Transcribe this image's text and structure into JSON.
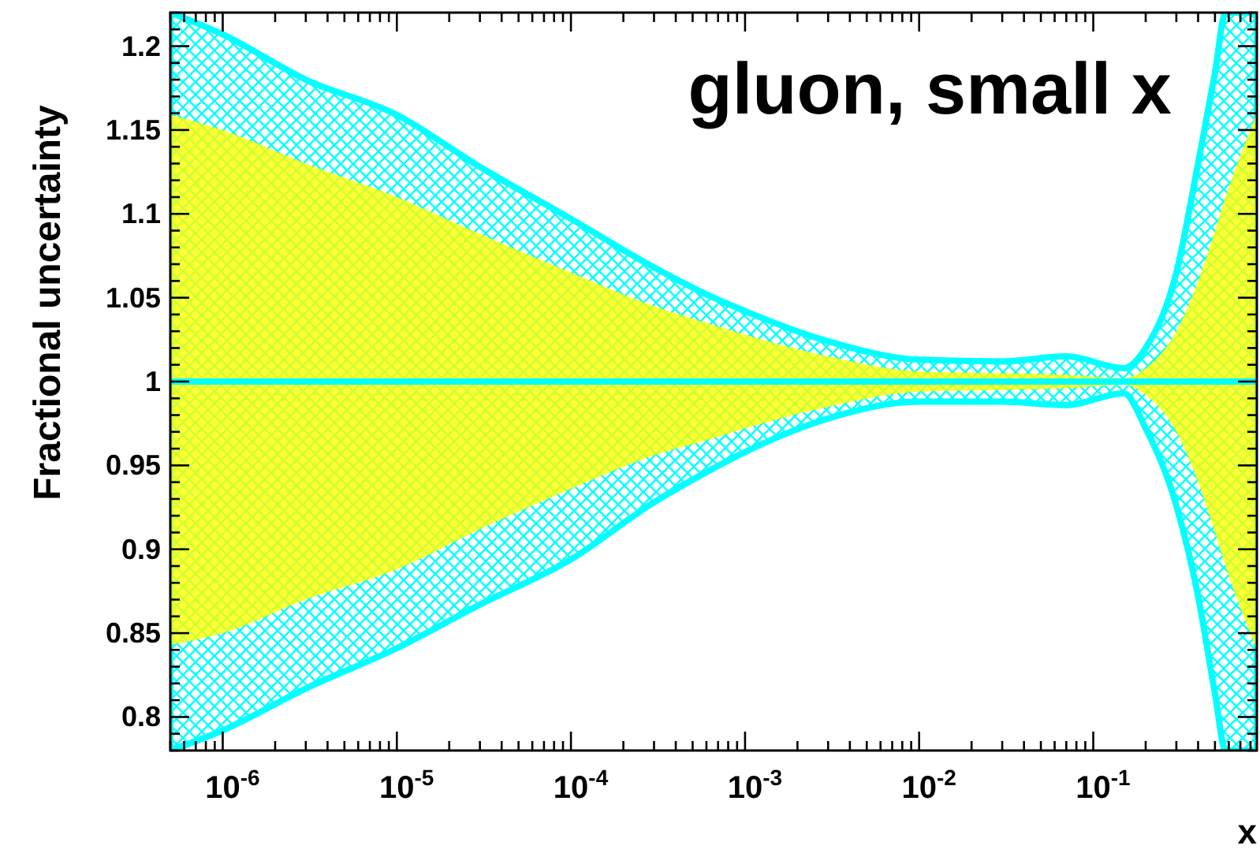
{
  "chart_data": {
    "type": "line",
    "title": "gluon, small x",
    "xlabel": "x",
    "ylabel": "Fractional uncertainty",
    "log": "x",
    "xlim": [
      5e-07,
      0.87
    ],
    "ylim": [
      0.78,
      1.22
    ],
    "xticks": [
      {
        "value": 5e-07,
        "label": null
      },
      {
        "value": 6e-07,
        "label": null
      },
      {
        "value": 7e-07,
        "label": null
      },
      {
        "value": 8e-07,
        "label": null
      },
      {
        "value": 9e-07,
        "label": null
      },
      {
        "value": 1e-06,
        "label": "10$^{-6}$"
      },
      {
        "value": 2e-06,
        "label": null
      },
      {
        "value": 3e-06,
        "label": null
      },
      {
        "value": 4e-06,
        "label": null
      },
      {
        "value": 5e-06,
        "label": null
      },
      {
        "value": 6e-06,
        "label": null
      },
      {
        "value": 7e-06,
        "label": null
      },
      {
        "value": 8e-06,
        "label": null
      },
      {
        "value": 9e-06,
        "label": null
      },
      {
        "value": 1e-05,
        "label": "10$^{-5}$"
      },
      {
        "value": 2e-05,
        "label": null
      },
      {
        "value": 3e-05,
        "label": null
      },
      {
        "value": 4e-05,
        "label": null
      },
      {
        "value": 5e-05,
        "label": null
      },
      {
        "value": 6e-05,
        "label": null
      },
      {
        "value": 7e-05,
        "label": null
      },
      {
        "value": 8e-05,
        "label": null
      },
      {
        "value": 9e-05,
        "label": null
      },
      {
        "value": 0.0001,
        "label": "10$^{-4}$"
      },
      {
        "value": 0.0002,
        "label": null
      },
      {
        "value": 0.0003,
        "label": null
      },
      {
        "value": 0.0004,
        "label": null
      },
      {
        "value": 0.0005,
        "label": null
      },
      {
        "value": 0.0006,
        "label": null
      },
      {
        "value": 0.0007,
        "label": null
      },
      {
        "value": 0.0008,
        "label": null
      },
      {
        "value": 0.0009,
        "label": null
      },
      {
        "value": 0.001,
        "label": "10$^{-3}$"
      },
      {
        "value": 0.002,
        "label": null
      },
      {
        "value": 0.003,
        "label": null
      },
      {
        "value": 0.004,
        "label": null
      },
      {
        "value": 0.005,
        "label": null
      },
      {
        "value": 0.006,
        "label": null
      },
      {
        "value": 0.007,
        "label": null
      },
      {
        "value": 0.008,
        "label": null
      },
      {
        "value": 0.009,
        "label": null
      },
      {
        "value": 0.01,
        "label": "10$^{-2}$"
      },
      {
        "value": 0.02,
        "label": null
      },
      {
        "value": 0.03,
        "label": null
      },
      {
        "value": 0.04,
        "label": null
      },
      {
        "value": 0.05,
        "label": null
      },
      {
        "value": 0.06,
        "label": null
      },
      {
        "value": 0.07,
        "label": null
      },
      {
        "value": 0.08,
        "label": null
      },
      {
        "value": 0.09,
        "label": null
      },
      {
        "value": 0.1,
        "label": "10$^{-1}$"
      },
      {
        "value": 0.2,
        "label": null
      },
      {
        "value": 0.3,
        "label": null
      },
      {
        "value": 0.4,
        "label": null
      },
      {
        "value": 0.5,
        "label": null
      },
      {
        "value": 0.6,
        "label": null
      },
      {
        "value": 0.7,
        "label": null
      },
      {
        "value": 0.8,
        "label": null
      }
    ],
    "yticks": [
      {
        "value": 0.78,
        "label": null
      },
      {
        "value": 0.79,
        "label": null
      },
      0.8,
      {
        "value": 0.81,
        "label": null
      },
      {
        "value": 0.82,
        "label": null
      },
      {
        "value": 0.83,
        "label": null
      },
      {
        "value": 0.84,
        "label": null
      },
      0.85,
      {
        "value": 0.86,
        "label": null
      },
      {
        "value": 0.87,
        "label": null
      },
      {
        "value": 0.88,
        "label": null
      },
      {
        "value": 0.89,
        "label": null
      },
      0.9,
      {
        "value": 0.91,
        "label": null
      },
      {
        "value": 0.92,
        "label": null
      },
      {
        "value": 0.93,
        "label": null
      },
      {
        "value": 0.94,
        "label": null
      },
      0.95,
      {
        "value": 0.96,
        "label": null
      },
      {
        "value": 0.97,
        "label": null
      },
      {
        "value": 0.98,
        "label": null
      },
      {
        "value": 0.99,
        "label": null
      },
      1,
      {
        "value": 1.01,
        "label": null
      },
      {
        "value": 1.02,
        "label": null
      },
      {
        "value": 1.03,
        "label": null
      },
      {
        "value": 1.04,
        "label": null
      },
      1.05,
      {
        "value": 1.06,
        "label": null
      },
      {
        "value": 1.07,
        "label": null
      },
      {
        "value": 1.08,
        "label": null
      },
      {
        "value": 1.09,
        "label": null
      },
      1.1,
      {
        "value": 1.11,
        "label": null
      },
      {
        "value": 1.12,
        "label": null
      },
      {
        "value": 1.13,
        "label": null
      },
      {
        "value": 1.14,
        "label": null
      },
      1.15,
      {
        "value": 1.16,
        "label": null
      },
      {
        "value": 1.17,
        "label": null
      },
      {
        "value": 1.18,
        "label": null
      },
      {
        "value": 1.19,
        "label": null
      },
      1.2,
      {
        "value": 1.21,
        "label": null
      },
      {
        "value": 1.22,
        "label": null
      }
    ],
    "series": [
      {
        "color": "#ffff00",
        "x": [
          5e-07,
          1e-06,
          3e-06,
          1e-05,
          3e-05,
          0.0001,
          0.0003,
          0.0006,
          0.001,
          0.003,
          0.01,
          0.03,
          0.07,
          0.15,
          0.2,
          0.3,
          0.4,
          0.5,
          0.575,
          0.87
        ],
        "values": [
          null,
          null,
          null,
          null,
          null,
          null,
          null,
          null,
          null,
          null,
          null,
          null,
          null,
          null,
          null,
          null,
          null,
          null,
          null,
          null
        ],
        "lower": [
          0.843,
          0.85,
          0.87,
          0.888,
          0.912,
          0.936,
          0.956,
          0.965,
          0.972,
          0.985,
          0.994,
          0.995,
          0.996,
          0.998,
          0.992,
          0.97,
          0.94,
          0.91,
          0.89,
          0.84
        ],
        "upper": [
          1.159,
          1.15,
          1.13,
          1.11,
          1.088,
          1.065,
          1.045,
          1.035,
          1.028,
          1.015,
          1.006,
          1.005,
          1.004,
          1.002,
          1.008,
          1.03,
          1.06,
          1.09,
          1.11,
          1.16
        ]
      },
      {
        "color": "#00ffff",
        "x": [
          5e-07,
          1e-06,
          3e-06,
          1e-05,
          3e-05,
          0.0001,
          0.0003,
          0.0006,
          0.001,
          0.003,
          0.01,
          0.03,
          0.07,
          0.15,
          0.2,
          0.3,
          0.4,
          0.5,
          0.575,
          0.87
        ],
        "values": [
          1,
          1,
          1,
          1,
          1,
          1,
          1,
          1,
          1,
          1,
          1,
          1,
          1,
          1,
          1,
          1,
          1,
          1,
          1,
          1
        ],
        "lower": [
          0.78,
          0.792,
          0.817,
          0.841,
          0.867,
          0.894,
          0.928,
          0.946,
          0.958,
          0.978,
          0.988,
          0.988,
          0.986,
          0.993,
          0.972,
          0.926,
          0.872,
          0.814,
          0.78,
          0.78
        ],
        "upper": [
          1.22,
          1.207,
          1.18,
          1.159,
          1.128,
          1.097,
          1.068,
          1.052,
          1.042,
          1.024,
          1.013,
          1.012,
          1.015,
          1.008,
          1.02,
          1.065,
          1.13,
          1.184,
          1.22,
          1.22
        ]
      }
    ],
    "grid": false
  }
}
